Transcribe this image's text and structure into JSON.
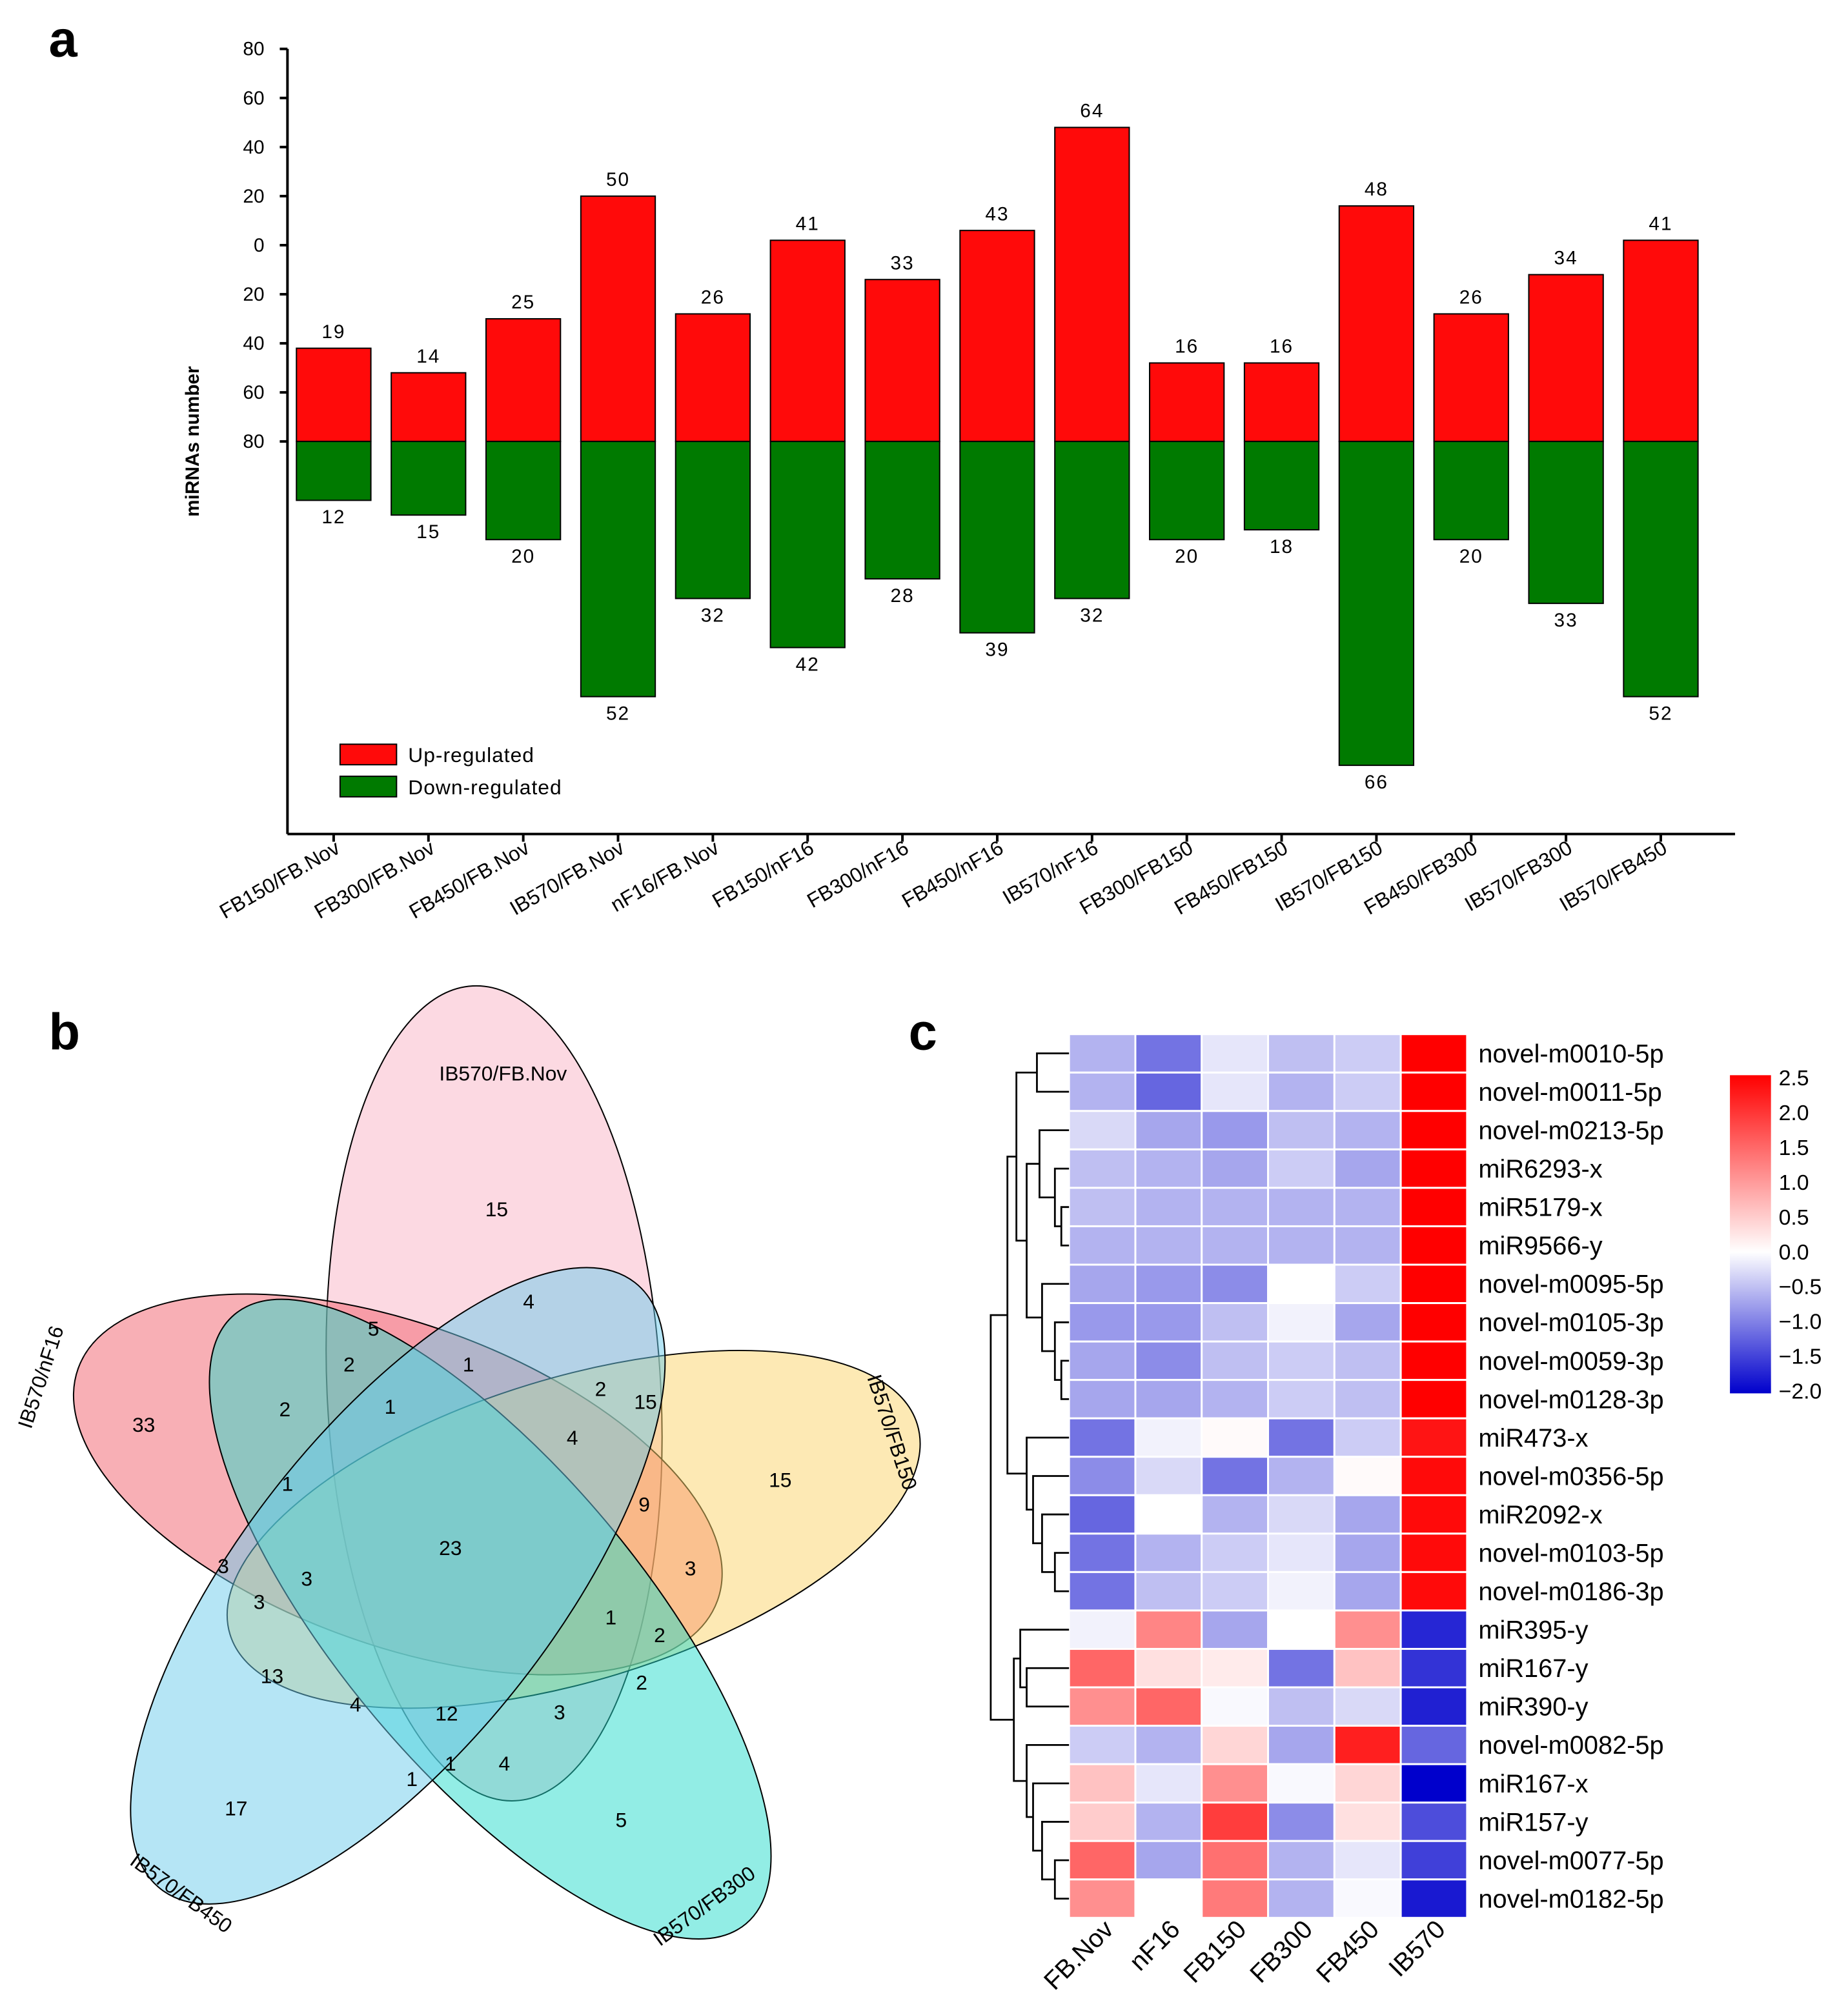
{
  "panels": {
    "a": "a",
    "b": "b",
    "c": "c"
  },
  "chart_data": [
    {
      "type": "bar",
      "panel": "a",
      "ylabel": "miRNAs number",
      "ylim": [
        -80,
        80
      ],
      "yticks": [
        80,
        60,
        40,
        20,
        0,
        20,
        40,
        60,
        80
      ],
      "categories": [
        "FB150/FB.Nov",
        "FB300/FB.Nov",
        "FB450/FB.Nov",
        "IB570/FB.Nov",
        "nF16/FB.Nov",
        "FB150/nF16",
        "FB300/nF16",
        "FB450/nF16",
        "IB570/nF16",
        "FB300/FB150",
        "FB450/FB150",
        "IB570/FB150",
        "FB450/FB300",
        "IB570/FB300",
        "IB570/FB450"
      ],
      "series": [
        {
          "name": "Up-regulated",
          "color": "#FF0A0A",
          "values": [
            19,
            14,
            25,
            50,
            26,
            41,
            33,
            43,
            64,
            16,
            16,
            48,
            26,
            34,
            41
          ]
        },
        {
          "name": "Down-regulated",
          "color": "#007A00",
          "values": [
            12,
            15,
            20,
            52,
            32,
            42,
            28,
            39,
            32,
            20,
            18,
            66,
            20,
            33,
            52
          ]
        }
      ],
      "legend": "bottom-left"
    },
    {
      "type": "venn",
      "panel": "b",
      "sets": [
        {
          "name": "IB570/FB.Nov",
          "color": "#F9B3C6"
        },
        {
          "name": "IB570/nF16",
          "color": "#F2606C"
        },
        {
          "name": "IB570/FB150",
          "color": "#FBD36A"
        },
        {
          "name": "IB570/FB300",
          "color": "#26DBCB"
        },
        {
          "name": "IB570/FB450",
          "color": "#6CCBEC"
        }
      ],
      "region_counts": [
        15,
        33,
        15,
        5,
        17,
        5,
        4,
        2,
        1,
        2,
        1,
        2,
        15,
        4,
        9,
        1,
        3,
        3,
        3,
        23,
        3,
        1,
        2,
        2,
        13,
        4,
        12,
        3,
        1,
        1,
        4
      ]
    },
    {
      "type": "heatmap",
      "panel": "c",
      "columns": [
        "FB.Nov",
        "nF16",
        "FB150",
        "FB300",
        "FB450",
        "IB570"
      ],
      "rows": [
        "novel-m0010-5p",
        "novel-m0011-5p",
        "novel-m0213-5p",
        "miR6293-x",
        "miR5179-x",
        "miR9566-y",
        "novel-m0095-5p",
        "novel-m0105-3p",
        "novel-m0059-3p",
        "novel-m0128-3p",
        "miR473-x",
        "novel-m0356-5p",
        "miR2092-x",
        "novel-m0103-5p",
        "novel-m0186-3p",
        "miR395-y",
        "miR167-y",
        "miR390-y",
        "novel-m0082-5p",
        "miR167-x",
        "miR157-y",
        "novel-m0077-5p",
        "novel-m0182-5p"
      ],
      "values": [
        [
          -0.6,
          -1.1,
          -0.2,
          -0.5,
          -0.4,
          2.5
        ],
        [
          -0.6,
          -1.2,
          -0.2,
          -0.6,
          -0.4,
          2.5
        ],
        [
          -0.3,
          -0.7,
          -0.8,
          -0.5,
          -0.6,
          2.5
        ],
        [
          -0.5,
          -0.6,
          -0.7,
          -0.4,
          -0.7,
          2.5
        ],
        [
          -0.5,
          -0.6,
          -0.6,
          -0.6,
          -0.6,
          2.5
        ],
        [
          -0.6,
          -0.6,
          -0.6,
          -0.6,
          -0.6,
          2.5
        ],
        [
          -0.7,
          -0.8,
          -0.9,
          0.0,
          -0.4,
          2.5
        ],
        [
          -0.8,
          -0.8,
          -0.5,
          -0.1,
          -0.7,
          2.5
        ],
        [
          -0.7,
          -0.9,
          -0.5,
          -0.4,
          -0.5,
          2.5
        ],
        [
          -0.7,
          -0.7,
          -0.6,
          -0.4,
          -0.5,
          2.5
        ],
        [
          -1.1,
          -0.1,
          0.05,
          -1.1,
          -0.4,
          2.3
        ],
        [
          -0.9,
          -0.3,
          -1.1,
          -0.6,
          0.05,
          2.4
        ],
        [
          -1.2,
          0.0,
          -0.6,
          -0.3,
          -0.7,
          2.4
        ],
        [
          -1.1,
          -0.6,
          -0.4,
          -0.2,
          -0.7,
          2.4
        ],
        [
          -1.1,
          -0.5,
          -0.4,
          -0.1,
          -0.7,
          2.4
        ],
        [
          -0.1,
          1.2,
          -0.7,
          0.0,
          1.1,
          -1.7
        ],
        [
          1.5,
          0.3,
          0.2,
          -1.1,
          0.6,
          -1.6
        ],
        [
          1.1,
          1.5,
          -0.05,
          -0.5,
          -0.3,
          -1.75
        ],
        [
          -0.4,
          -0.6,
          0.4,
          -0.7,
          2.2,
          -1.2
        ],
        [
          0.6,
          -0.2,
          1.1,
          -0.05,
          0.4,
          -2.0
        ],
        [
          0.5,
          -0.6,
          1.9,
          -0.9,
          0.3,
          -1.4
        ],
        [
          1.5,
          -0.7,
          1.4,
          -0.6,
          -0.2,
          -1.5
        ],
        [
          1.1,
          0.0,
          1.3,
          -0.6,
          -0.05,
          -1.8
        ]
      ],
      "colorbar": {
        "min": -2.0,
        "max": 2.5,
        "ticks": [
          "2.5",
          "2.0",
          "1.5",
          "1.0",
          "0.5",
          "0.0",
          "−0.5",
          "−1.0",
          "−1.5",
          "−2.0"
        ],
        "low_color": "#0000CC",
        "mid_color": "#FFFFFF",
        "high_color": "#FF0000"
      }
    }
  ]
}
